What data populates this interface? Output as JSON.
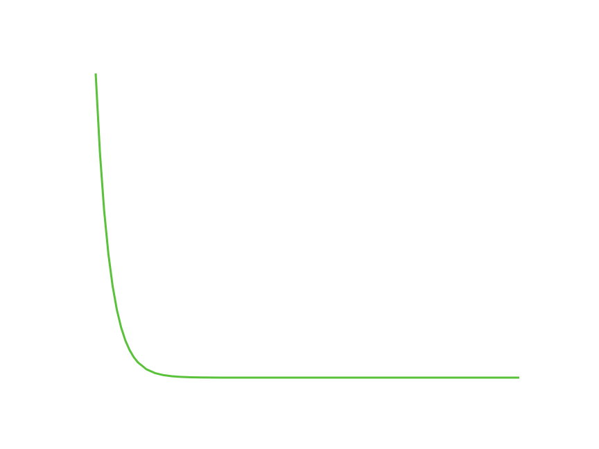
{
  "chart_data": {
    "type": "line",
    "title": "",
    "xlabel": "",
    "ylabel": "",
    "grid": false,
    "axes_visible": false,
    "xlim": [
      0,
      10
    ],
    "ylim": [
      0,
      1
    ],
    "series": [
      {
        "color": "#59c13a",
        "x": [
          0,
          0.1,
          0.2,
          0.3,
          0.4,
          0.5,
          0.6,
          0.7,
          0.8,
          0.9,
          1.0,
          1.2,
          1.4,
          1.6,
          1.8,
          2.0,
          2.25,
          2.5,
          2.75,
          3.0,
          3.5,
          4.0,
          4.5,
          5.0,
          6.0,
          7.0,
          8.0,
          9.0,
          10.0
        ],
        "y": [
          1.0,
          0.7408,
          0.5488,
          0.4066,
          0.3012,
          0.2231,
          0.1653,
          0.1225,
          0.0907,
          0.0672,
          0.0498,
          0.0273,
          0.015,
          0.0082,
          0.0045,
          0.0025,
          0.0012,
          0.0006,
          0.0003,
          0.0001,
          0.0,
          0.0,
          0.0,
          0.0,
          0.0,
          0.0,
          0.0,
          0.0,
          0.0
        ]
      }
    ]
  }
}
